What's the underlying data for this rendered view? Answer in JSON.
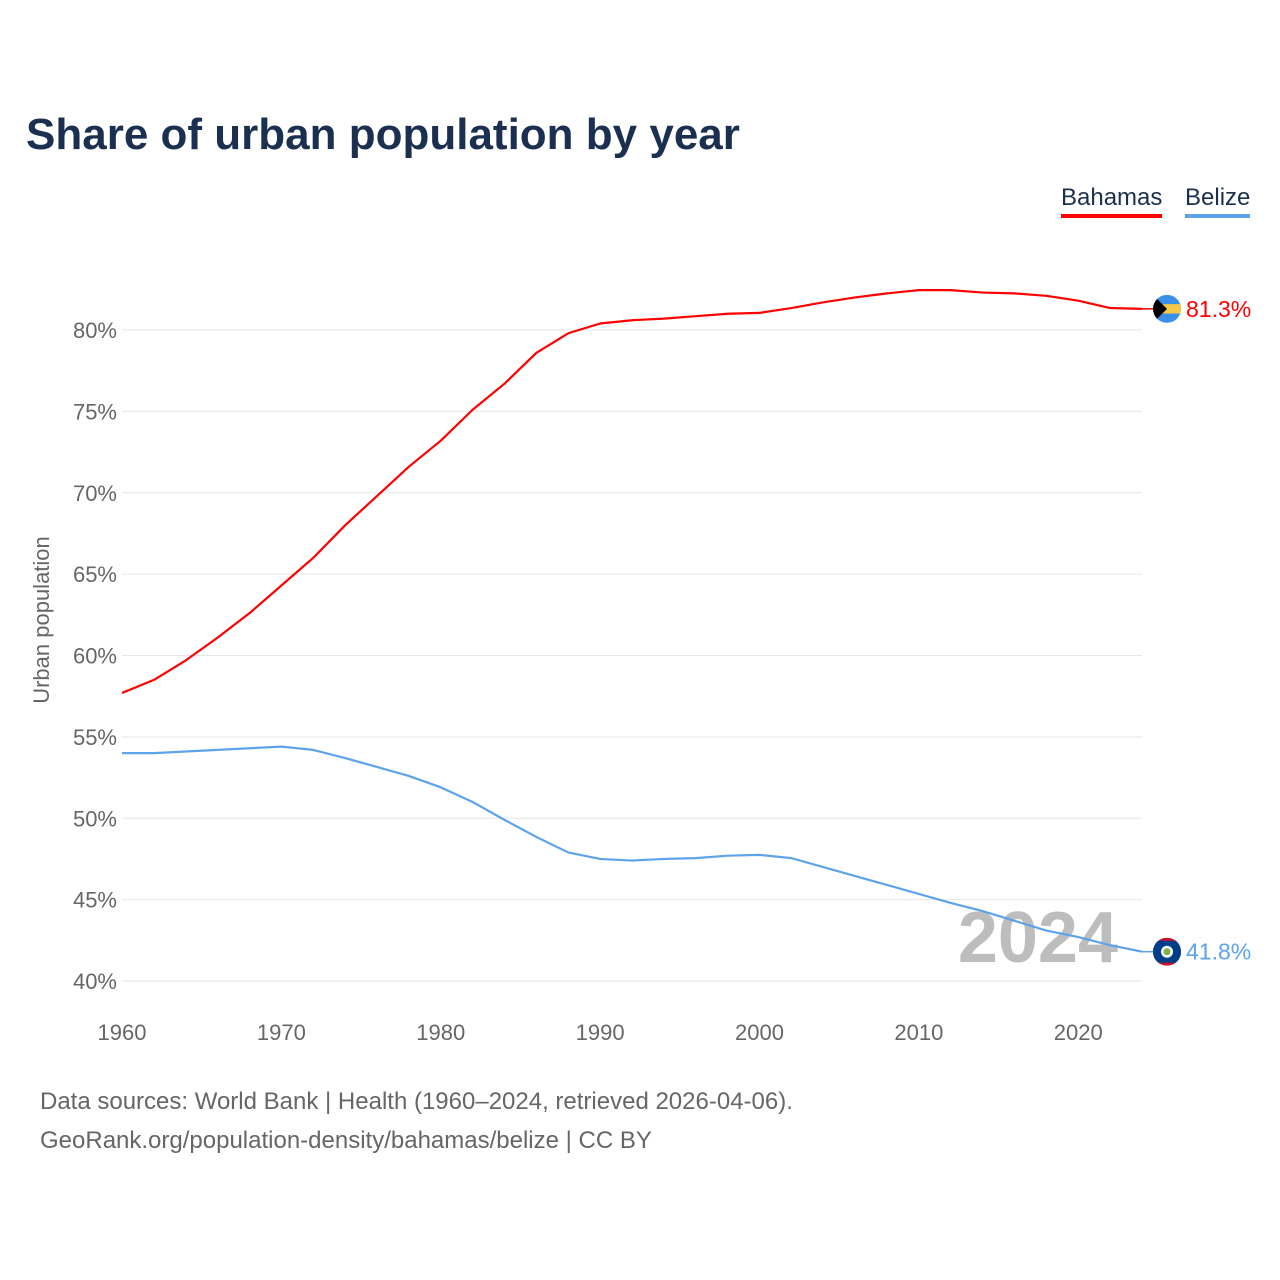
{
  "chart_data": {
    "type": "line",
    "title": "Share of urban population by year",
    "ylabel": "Urban population",
    "xlabel": "",
    "xlim": [
      1960,
      2024
    ],
    "ylim": [
      40,
      83
    ],
    "x_ticks": [
      "1960",
      "1970",
      "1980",
      "1990",
      "2000",
      "2010",
      "2020"
    ],
    "y_ticks": [
      "40%",
      "45%",
      "50%",
      "55%",
      "60%",
      "65%",
      "70%",
      "75%",
      "80%"
    ],
    "grid": true,
    "legend_position": "top-right",
    "year_watermark": "2024",
    "x": [
      1960,
      1962,
      1964,
      1966,
      1968,
      1970,
      1972,
      1974,
      1976,
      1978,
      1980,
      1982,
      1984,
      1986,
      1988,
      1990,
      1992,
      1994,
      1996,
      1998,
      2000,
      2002,
      2004,
      2006,
      2008,
      2010,
      2012,
      2014,
      2016,
      2018,
      2020,
      2022,
      2024
    ],
    "series": [
      {
        "name": "Bahamas",
        "color": "#ff0000",
        "end_label": "81.3%",
        "flag": "bahamas-flag",
        "values": [
          57.7,
          58.5,
          59.7,
          61.1,
          62.6,
          64.3,
          66.0,
          68.0,
          69.8,
          71.6,
          73.2,
          75.1,
          76.7,
          78.6,
          79.8,
          80.4,
          80.6,
          80.7,
          80.85,
          81.0,
          81.05,
          81.35,
          81.7,
          82.0,
          82.25,
          82.45,
          82.45,
          82.3,
          82.25,
          82.1,
          81.8,
          81.35,
          81.3
        ]
      },
      {
        "name": "Belize",
        "color": "#5da3eb",
        "end_label": "41.8%",
        "flag": "belize-flag",
        "values": [
          54.0,
          54.0,
          54.1,
          54.2,
          54.3,
          54.4,
          54.2,
          53.7,
          53.15,
          52.6,
          51.9,
          51.0,
          49.9,
          48.85,
          47.9,
          47.5,
          47.4,
          47.5,
          47.55,
          47.7,
          47.75,
          47.55,
          47.0,
          46.45,
          45.9,
          45.35,
          44.8,
          44.3,
          43.7,
          43.1,
          42.7,
          42.2,
          41.8
        ]
      }
    ]
  },
  "footer": {
    "line1": "Data sources: World Bank | Health (1960–2024, retrieved 2026-04-06).",
    "line2": "GeoRank.org/population-density/bahamas/belize | CC BY"
  }
}
